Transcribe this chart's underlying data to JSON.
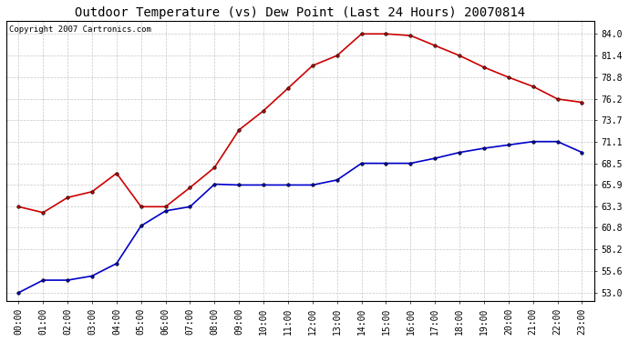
{
  "title": "Outdoor Temperature (vs) Dew Point (Last 24 Hours) 20070814",
  "copyright_text": "Copyright 2007 Cartronics.com",
  "hours": [
    "00:00",
    "01:00",
    "02:00",
    "03:00",
    "04:00",
    "05:00",
    "06:00",
    "07:00",
    "08:00",
    "09:00",
    "10:00",
    "11:00",
    "12:00",
    "13:00",
    "14:00",
    "15:00",
    "16:00",
    "17:00",
    "18:00",
    "19:00",
    "20:00",
    "21:00",
    "22:00",
    "23:00"
  ],
  "temp_red": [
    63.3,
    62.6,
    64.4,
    65.1,
    67.3,
    63.3,
    63.3,
    65.6,
    68.0,
    72.5,
    74.8,
    77.5,
    80.2,
    81.4,
    84.0,
    84.0,
    83.8,
    82.6,
    81.4,
    80.0,
    78.8,
    77.7,
    76.2,
    75.8
  ],
  "dew_blue": [
    53.0,
    54.5,
    54.5,
    55.0,
    56.5,
    61.0,
    62.8,
    63.3,
    66.0,
    65.9,
    65.9,
    65.9,
    65.9,
    66.5,
    68.5,
    68.5,
    68.5,
    69.1,
    69.8,
    70.3,
    70.7,
    71.1,
    71.1,
    69.8
  ],
  "yticks": [
    53.0,
    55.6,
    58.2,
    60.8,
    63.3,
    65.9,
    68.5,
    71.1,
    73.7,
    76.2,
    78.8,
    81.4,
    84.0
  ],
  "ylim": [
    52.0,
    85.5
  ],
  "bg_color": "#ffffff",
  "plot_bg_color": "#ffffff",
  "grid_color": "#c0c0c0",
  "red_color": "#cc0000",
  "blue_color": "#0000cc",
  "title_fontsize": 10,
  "copyright_fontsize": 6.5,
  "tick_fontsize": 7,
  "figwidth": 6.9,
  "figheight": 3.75,
  "dpi": 100
}
